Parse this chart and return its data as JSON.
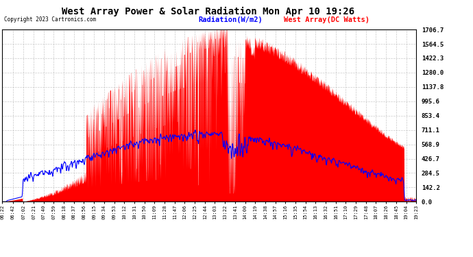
{
  "title": "West Array Power & Solar Radiation Mon Apr 10 19:26",
  "copyright": "Copyright 2023 Cartronics.com",
  "legend_radiation": "Radiation(W/m2)",
  "legend_west": "West Array(DC Watts)",
  "legend_radiation_color": "blue",
  "legend_west_color": "red",
  "y_max": 1706.7,
  "y_ticks": [
    0.0,
    142.2,
    284.5,
    426.7,
    568.9,
    711.1,
    853.4,
    995.6,
    1137.8,
    1280.0,
    1422.3,
    1564.5,
    1706.7
  ],
  "background_color": "#ffffff",
  "plot_bg_color": "#ffffff",
  "grid_color": "#bbbbbb",
  "fill_color": "red",
  "line_color": "blue",
  "x_labels": [
    "06:22",
    "06:42",
    "07:02",
    "07:21",
    "07:40",
    "07:59",
    "08:18",
    "08:37",
    "08:56",
    "09:15",
    "09:34",
    "09:53",
    "10:12",
    "10:31",
    "10:50",
    "11:09",
    "11:28",
    "11:47",
    "12:06",
    "12:25",
    "12:44",
    "13:03",
    "13:22",
    "13:41",
    "14:00",
    "14:19",
    "14:38",
    "14:57",
    "15:16",
    "15:35",
    "15:54",
    "16:13",
    "16:32",
    "16:51",
    "17:10",
    "17:29",
    "17:48",
    "18:07",
    "18:26",
    "18:45",
    "19:04",
    "19:23"
  ]
}
